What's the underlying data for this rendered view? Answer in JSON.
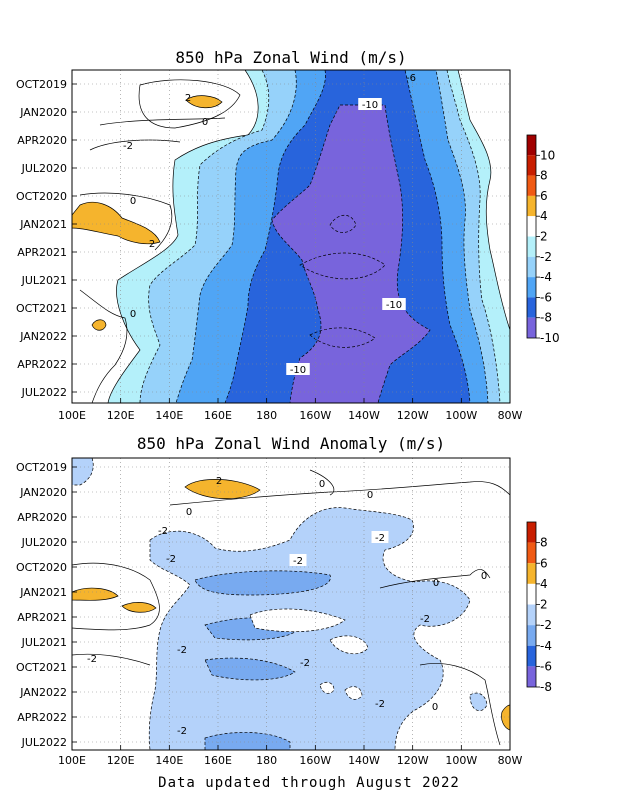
{
  "chart_data": [
    {
      "type": "heatmap",
      "title": "850 hPa Zonal Wind (m/s)",
      "x": [
        "100E",
        "120E",
        "140E",
        "160E",
        "180",
        "160W",
        "140W",
        "120W",
        "100W",
        "80W"
      ],
      "y": [
        "OCT2019",
        "JAN2020",
        "APR2020",
        "JUL2020",
        "OCT2020",
        "JAN2021",
        "APR2021",
        "JUL2021",
        "OCT2021",
        "JAN2022",
        "APR2022",
        "JUL2022"
      ],
      "colorbar": {
        "levels": [
          "10",
          "8",
          "6",
          "4",
          "2",
          "-2",
          "-4",
          "-6",
          "-8",
          "-10"
        ]
      },
      "grid": true,
      "contour_labels": [
        "-6",
        "2",
        "-10",
        "0",
        "-2",
        "0",
        "2",
        "-10",
        "0",
        "-10"
      ]
    },
    {
      "type": "heatmap",
      "title": "850 hPa Zonal Wind Anomaly (m/s)",
      "x": [
        "100E",
        "120E",
        "140E",
        "160E",
        "180",
        "160W",
        "140W",
        "120W",
        "100W",
        "80W"
      ],
      "y": [
        "OCT2019",
        "JAN2020",
        "APR2020",
        "JUL2020",
        "OCT2020",
        "JAN2021",
        "APR2021",
        "JUL2021",
        "OCT2021",
        "JAN2022",
        "APR2022",
        "JUL2022"
      ],
      "colorbar": {
        "levels": [
          "8",
          "6",
          "4",
          "2",
          "-2",
          "-4",
          "-6",
          "-8"
        ]
      },
      "grid": true,
      "contour_labels": [
        "2",
        "0",
        "0",
        "0",
        "-2",
        "-2",
        "-2",
        "-2",
        "0",
        "0",
        "-2",
        "-2",
        "-2",
        "-2",
        "0",
        "-2",
        "-2"
      ]
    }
  ],
  "footer": "Data updated through August 2022"
}
